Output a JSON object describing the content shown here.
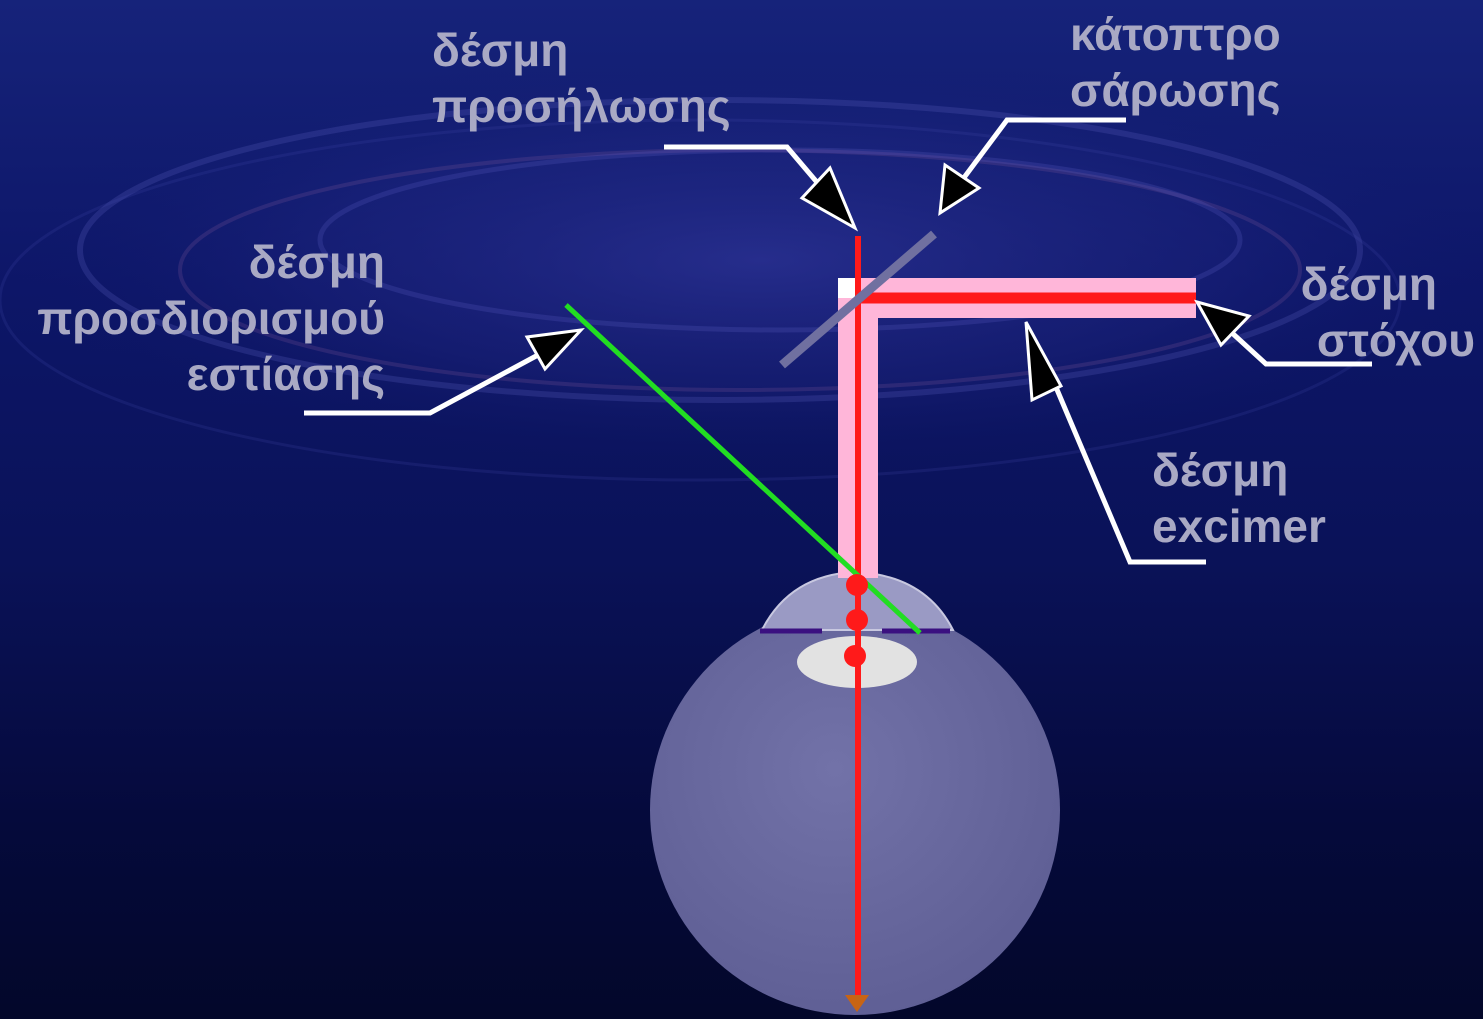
{
  "labels": {
    "illumination_beam": [
      "δέσμη",
      "προσήλωσης"
    ],
    "scanning_mirror": [
      "κάτοπτρο",
      "σάρωσης"
    ],
    "focus_beam": [
      "δέσμη",
      "προσδιορισμού",
      "εστίασης"
    ],
    "target_beam": [
      "δέσμη",
      "στόχου"
    ],
    "excimer_beam": [
      "δέσμη",
      "excimer"
    ]
  },
  "colors": {
    "background_top": "#16237a",
    "background_bottom": "#03072a",
    "label_text": "#a9a9c4",
    "leader_line": "#ffffff",
    "red_beam": "#ff1a1a",
    "excimer_beam": "#ffb6d9",
    "focus_beam": "#22dd22",
    "mirror": "#7070a0",
    "eyeball": "#6a6a9e",
    "cornea": "#9a9ac4",
    "lens": "#e2e2e2",
    "iris_line": "#3a1080",
    "retina_mark": "#c86414"
  }
}
